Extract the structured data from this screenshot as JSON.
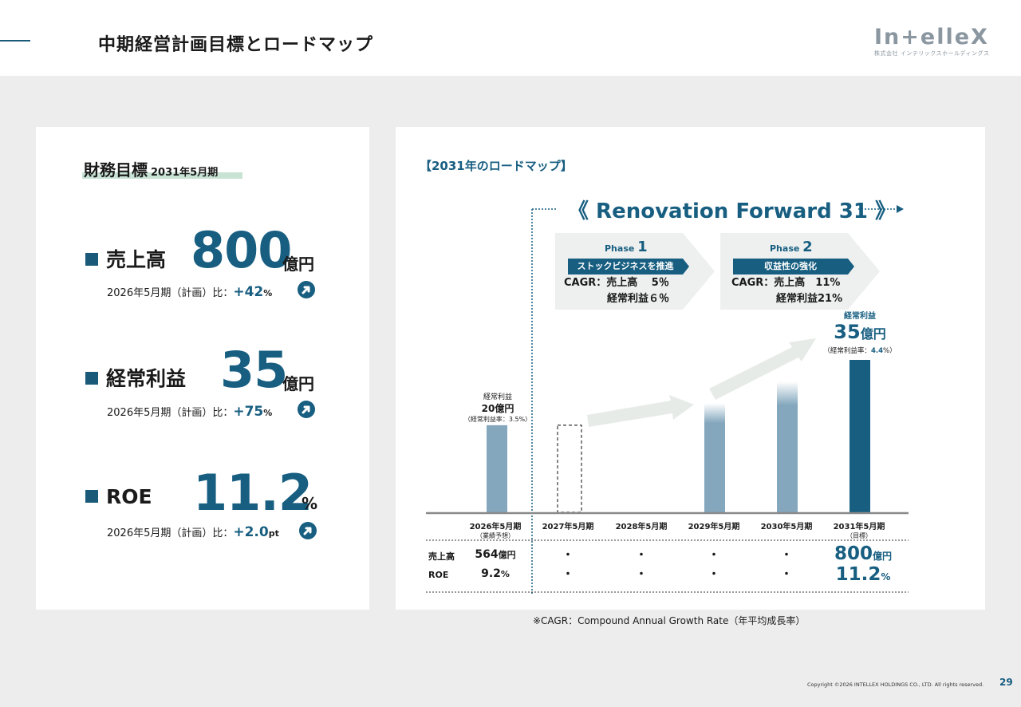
{
  "header": {
    "title": "中期経営計画目標とロードマップ",
    "logo_text": "In+elleX",
    "logo_sub": "株式会社 インテリックスホールディングス"
  },
  "financial": {
    "title": "財務目標",
    "period": "2031年5月期",
    "metrics": [
      {
        "label": "売上高",
        "value": "800",
        "unit": "億円",
        "compare_text": "2026年5月期（計画）比：",
        "change": "+42",
        "change_unit": "%"
      },
      {
        "label": "経常利益",
        "value": "35",
        "unit": "億円",
        "compare_text": "2026年5月期（計画）比：",
        "change": "+75",
        "change_unit": "%"
      },
      {
        "label": "ROE",
        "value": "11.2",
        "unit": "%",
        "compare_text": "2026年5月期（計画）比：",
        "change": "+2.0",
        "change_unit": "pt"
      }
    ]
  },
  "roadmap": {
    "title": "【2031年のロードマップ】",
    "initiative": "《 Renovation Forward 31 》",
    "phases": [
      {
        "label": "Phase",
        "number": "1",
        "tag": "ストックビジネスを推進",
        "line1": "CAGR：売上高　 5％",
        "line2": "経常利益６％"
      },
      {
        "label": "Phase",
        "number": "2",
        "tag": "収益性の強化",
        "line1": "CAGR：売上高　11%",
        "line2": "経常利益21%"
      }
    ],
    "bar_2026": {
      "title": "経常利益",
      "value": "20億円",
      "margin": "（経常利益率：3.5%）"
    },
    "bar_2031": {
      "title": "経常利益",
      "value": "35",
      "unit": "億円",
      "margin_prefix": "（経常利益率：",
      "margin_value": "4.4",
      "margin_suffix": "%）"
    },
    "years": [
      {
        "label": "2026年5月期",
        "sub": "（業績予想）"
      },
      {
        "label": "2027年5月期",
        "sub": ""
      },
      {
        "label": "2028年5月期",
        "sub": ""
      },
      {
        "label": "2029年5月期",
        "sub": ""
      },
      {
        "label": "2030年5月期",
        "sub": ""
      },
      {
        "label": "2031年5月期",
        "sub": "（目標）"
      }
    ],
    "rows": [
      {
        "label": "売上高",
        "first": "564",
        "first_unit": "億円",
        "mid": [
          "・",
          "・",
          "・",
          "・"
        ],
        "last": "800",
        "last_unit": "億円"
      },
      {
        "label": "ROE",
        "first": "9.2",
        "first_unit": "%",
        "mid": [
          "・",
          "・",
          "・",
          "・"
        ],
        "last": "11.2",
        "last_unit": "%"
      }
    ]
  },
  "chart_data": {
    "type": "bar",
    "title": "経常利益",
    "categories": [
      "2026年5月期",
      "2027年5月期",
      "2028年5月期",
      "2029年5月期",
      "2030年5月期",
      "2031年5月期"
    ],
    "values": [
      20,
      20,
      null,
      25,
      30,
      35
    ],
    "ylabel": "億円",
    "ylim": [
      0,
      35
    ]
  },
  "footer": {
    "note": "※CAGR：Compound Annual Growth Rate（年平均成長率）",
    "copyright": "Copyright ©2026 INTELLEX HOLDINGS CO., LTD. All rights reserved.",
    "page": "29"
  },
  "colors": {
    "accent": "#175e81",
    "bar_light": "#84a7bd",
    "bar_dark": "#175e81",
    "bg": "#ededed"
  }
}
